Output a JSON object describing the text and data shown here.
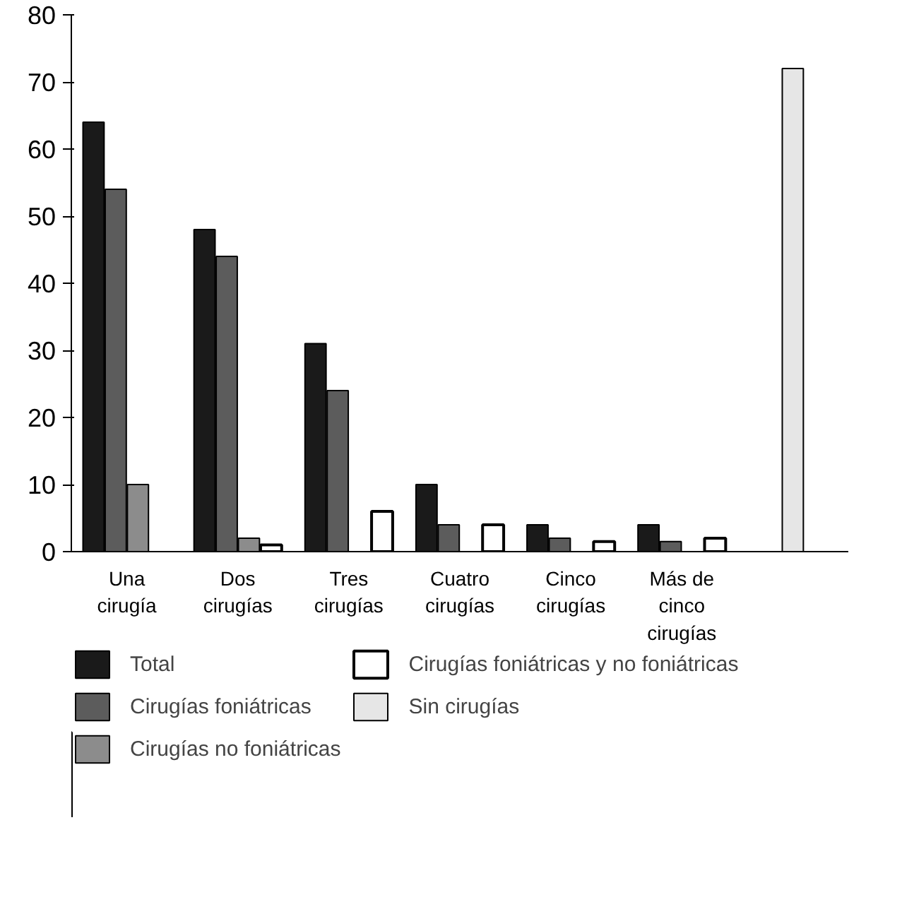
{
  "chart_data": {
    "type": "bar",
    "categories": [
      "Una cirugía",
      "Dos cirugías",
      "Tres cirugías",
      "Cuatro cirugías",
      "Cinco cirugías",
      "Más de cinco cirugías",
      null
    ],
    "series": [
      {
        "name": "Total",
        "color": "#1a1a1a",
        "values": [
          64,
          48,
          31,
          10,
          4,
          4,
          null
        ]
      },
      {
        "name": "Cirugías foniátricas",
        "color": "#5c5c5c",
        "values": [
          54,
          44,
          24,
          4,
          2,
          1.5,
          null
        ]
      },
      {
        "name": "Cirugías no foniátricas",
        "color": "#8c8c8c",
        "values": [
          10,
          2,
          null,
          null,
          null,
          null,
          null
        ]
      },
      {
        "name": "Cirugías foniátricas y no foniátricas",
        "color": "#ffffff",
        "values": [
          null,
          1,
          6,
          4,
          1.5,
          2,
          null
        ]
      },
      {
        "name": "Sin cirugías",
        "color": "#e6e6e6",
        "values": [
          null,
          null,
          null,
          null,
          null,
          null,
          72
        ]
      }
    ],
    "ylim": [
      0,
      80
    ],
    "yticks": [
      0,
      10,
      20,
      30,
      40,
      50,
      60,
      70,
      80
    ],
    "grid": false,
    "legend": "bottom"
  }
}
